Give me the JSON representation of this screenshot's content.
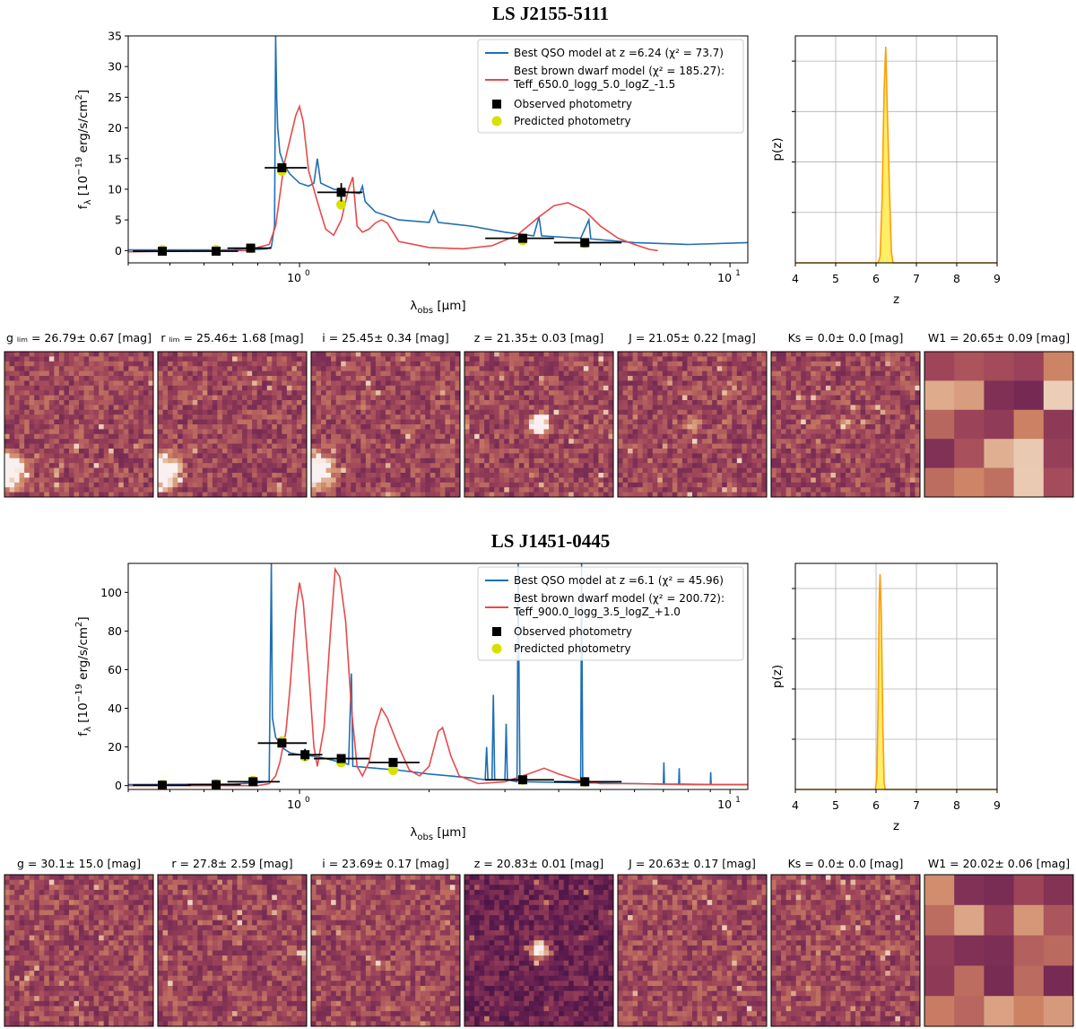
{
  "chart_data": [
    {
      "object": "LS J2155-5111",
      "type": "line",
      "sed": {
        "xlabel_main": "λ",
        "xlabel_sub": "obs",
        "xlabel_unit": "[μm]",
        "ylabel": "f_λ [10^-19 erg/s/cm^2]",
        "x_scale": "log",
        "xlim": [
          0.4,
          11
        ],
        "ylim": [
          -2,
          35
        ],
        "x_ticks": [
          {
            "value": 1,
            "label": "10^0"
          },
          {
            "value": 10,
            "label": "10^1"
          }
        ],
        "y_ticks": [
          0,
          5,
          10,
          15,
          20,
          25,
          30,
          35
        ],
        "legend": {
          "position": "top-right",
          "qso_label": "Best QSO model at z =6.24 (χ² = 73.7)",
          "bd_label_1": "Best brown dwarf model (χ² = 185.27):",
          "bd_label_2": "Teff_650.0_logg_5.0_logZ_-1.5",
          "obs_label": "Observed photometry",
          "pred_label": "Predicted photometry"
        },
        "qso_color": "#1f6fb4",
        "bd_color": "#e64a4a",
        "pred_color": "#d8e000",
        "qso_curve": [
          [
            0.4,
            0.1
          ],
          [
            0.6,
            0.1
          ],
          [
            0.7,
            0.1
          ],
          [
            0.75,
            0.3
          ],
          [
            0.8,
            0.2
          ],
          [
            0.84,
            0.3
          ],
          [
            0.86,
            0.6
          ],
          [
            0.875,
            4
          ],
          [
            0.88,
            35
          ],
          [
            0.885,
            25
          ],
          [
            0.89,
            20
          ],
          [
            0.9,
            16
          ],
          [
            0.92,
            14
          ],
          [
            0.95,
            12.5
          ],
          [
            1.0,
            11
          ],
          [
            1.05,
            10.5
          ],
          [
            1.08,
            11
          ],
          [
            1.1,
            15
          ],
          [
            1.12,
            11
          ],
          [
            1.2,
            10
          ],
          [
            1.3,
            9.5
          ],
          [
            1.38,
            9.3
          ],
          [
            1.4,
            10.5
          ],
          [
            1.42,
            8
          ],
          [
            1.5,
            6.3
          ],
          [
            1.7,
            5
          ],
          [
            2.0,
            4.6
          ],
          [
            2.05,
            6.5
          ],
          [
            2.1,
            4.6
          ],
          [
            2.5,
            4
          ],
          [
            3.0,
            3
          ],
          [
            3.5,
            2.4
          ],
          [
            3.6,
            5.5
          ],
          [
            3.65,
            2.4
          ],
          [
            4.5,
            2
          ],
          [
            4.7,
            5
          ],
          [
            4.75,
            1.9
          ],
          [
            6,
            1.3
          ],
          [
            8,
            1
          ],
          [
            11,
            1.3
          ]
        ],
        "bd_curve": [
          [
            0.4,
            -0.2
          ],
          [
            0.75,
            0
          ],
          [
            0.85,
            1
          ],
          [
            0.88,
            4
          ],
          [
            0.9,
            9
          ],
          [
            0.92,
            14
          ],
          [
            0.95,
            18
          ],
          [
            0.98,
            22
          ],
          [
            1.0,
            23.5
          ],
          [
            1.02,
            21
          ],
          [
            1.05,
            13
          ],
          [
            1.1,
            8
          ],
          [
            1.15,
            3.5
          ],
          [
            1.2,
            2.5
          ],
          [
            1.25,
            5
          ],
          [
            1.3,
            10
          ],
          [
            1.33,
            12
          ],
          [
            1.36,
            4
          ],
          [
            1.4,
            3
          ],
          [
            1.45,
            3.5
          ],
          [
            1.5,
            4.5
          ],
          [
            1.55,
            5
          ],
          [
            1.6,
            4.5
          ],
          [
            1.7,
            1.5
          ],
          [
            2.0,
            0.5
          ],
          [
            2.4,
            0.3
          ],
          [
            2.8,
            0.8
          ],
          [
            3.2,
            2.5
          ],
          [
            3.6,
            5.5
          ],
          [
            3.9,
            7.3
          ],
          [
            4.2,
            7.8
          ],
          [
            4.6,
            6.5
          ],
          [
            5.0,
            4
          ],
          [
            5.5,
            2
          ],
          [
            6.0,
            1
          ],
          [
            6.5,
            0.2
          ],
          [
            6.8,
            0
          ]
        ],
        "observed": [
          {
            "x": 0.48,
            "y": -0.1,
            "xerr": [
              0.41,
              0.56
            ],
            "yerr": 0.2
          },
          {
            "x": 0.64,
            "y": -0.1,
            "xerr": [
              0.56,
              0.72
            ],
            "yerr": 0.2
          },
          {
            "x": 0.77,
            "y": 0.4,
            "xerr": [
              0.68,
              0.86
            ],
            "yerr": 0.5
          },
          {
            "x": 0.91,
            "y": 13.5,
            "xerr": [
              0.83,
              1.04
            ],
            "yerr": 0.5
          },
          {
            "x": 1.25,
            "y": 9.5,
            "xerr": [
              1.1,
              1.4
            ],
            "yerr": 1.5
          },
          {
            "x": 3.3,
            "y": 2,
            "xerr": [
              2.7,
              3.9
            ],
            "yerr": 0.3
          },
          {
            "x": 4.6,
            "y": 1.3,
            "xerr": [
              3.9,
              5.6
            ],
            "yerr": 0.3
          }
        ],
        "predicted": [
          {
            "x": 0.48,
            "y": 0.1
          },
          {
            "x": 0.64,
            "y": 0.1
          },
          {
            "x": 0.77,
            "y": 0.4
          },
          {
            "x": 0.91,
            "y": 13
          },
          {
            "x": 1.25,
            "y": 7.5
          },
          {
            "x": 3.3,
            "y": 1.7
          },
          {
            "x": 4.6,
            "y": 1.2
          }
        ]
      },
      "pz": {
        "ylabel": "p(z)",
        "xlabel": "z",
        "xlim": [
          4,
          9
        ],
        "x_ticks": [
          4,
          5,
          6,
          7,
          8,
          9
        ],
        "line_color": "#ff9d0a",
        "fill_color": "#ffee66",
        "curve": [
          [
            4,
            0
          ],
          [
            6.05,
            0
          ],
          [
            6.1,
            0.03
          ],
          [
            6.15,
            0.3
          ],
          [
            6.2,
            0.8
          ],
          [
            6.24,
            1.0
          ],
          [
            6.28,
            0.7
          ],
          [
            6.33,
            0.35
          ],
          [
            6.38,
            0.05
          ],
          [
            6.42,
            0
          ],
          [
            9,
            0
          ]
        ]
      },
      "cutouts": [
        {
          "label": "g ₗᵢₘ = 26.79± 0.67 [mag]",
          "source": "corner"
        },
        {
          "label": "r ₗᵢₘ = 25.46± 1.68 [mag]",
          "source": "corner"
        },
        {
          "label": "i = 25.45± 0.34 [mag]",
          "source": "corner"
        },
        {
          "label": "z = 21.35± 0.03 [mag]",
          "source": "center"
        },
        {
          "label": "J = 21.05± 0.22 [mag]",
          "source": "center-faint"
        },
        {
          "label": "Ks = 0.0± 0.0 [mag]",
          "source": "center-faint"
        },
        {
          "label": "W1 = 20.65± 0.09 [mag]",
          "source": "wise"
        }
      ]
    },
    {
      "object": "LS J1451-0445",
      "type": "line",
      "sed": {
        "xlabel_main": "λ",
        "xlabel_sub": "obs",
        "xlabel_unit": "[μm]",
        "ylabel": "f_λ [10^-19 erg/s/cm^2]",
        "x_scale": "log",
        "xlim": [
          0.4,
          11
        ],
        "ylim": [
          -2,
          115
        ],
        "x_ticks": [
          {
            "value": 1,
            "label": "10^0"
          },
          {
            "value": 10,
            "label": "10^1"
          }
        ],
        "y_ticks": [
          0,
          20,
          40,
          60,
          80,
          100
        ],
        "legend": {
          "position": "top-right",
          "qso_label": "Best QSO model at z =6.1 (χ² = 45.96)",
          "bd_label_1": "Best brown dwarf model (χ² = 200.72):",
          "bd_label_2": "Teff_900.0_logg_3.5_logZ_+1.0",
          "obs_label": "Observed photometry",
          "pred_label": "Predicted photometry"
        },
        "qso_color": "#1f6fb4",
        "bd_color": "#e64a4a",
        "pred_color": "#d8e000",
        "qso_curve": [
          [
            0.4,
            0.5
          ],
          [
            0.7,
            0.8
          ],
          [
            0.8,
            1.5
          ],
          [
            0.85,
            2
          ],
          [
            0.86,
            115
          ],
          [
            0.865,
            35
          ],
          [
            0.88,
            25
          ],
          [
            0.92,
            19
          ],
          [
            0.95,
            17
          ],
          [
            1.0,
            16
          ],
          [
            1.1,
            15
          ],
          [
            1.2,
            13
          ],
          [
            1.3,
            11
          ],
          [
            1.32,
            58
          ],
          [
            1.33,
            10
          ],
          [
            1.5,
            9
          ],
          [
            1.7,
            8
          ],
          [
            2.0,
            6
          ],
          [
            2.5,
            4
          ],
          [
            2.7,
            3
          ],
          [
            2.72,
            20
          ],
          [
            2.74,
            3
          ],
          [
            2.8,
            3
          ],
          [
            2.82,
            47
          ],
          [
            2.84,
            3
          ],
          [
            3.0,
            3
          ],
          [
            3.02,
            32
          ],
          [
            3.04,
            3
          ],
          [
            3.2,
            2
          ],
          [
            3.22,
            115
          ],
          [
            3.25,
            2
          ],
          [
            4.5,
            1.5
          ],
          [
            4.52,
            115
          ],
          [
            4.55,
            1.5
          ],
          [
            6.0,
            1
          ],
          [
            7.0,
            0.8
          ],
          [
            7.02,
            12
          ],
          [
            7.04,
            0.8
          ],
          [
            7.6,
            0.8
          ],
          [
            7.62,
            9
          ],
          [
            7.64,
            0.8
          ],
          [
            9,
            0.5
          ],
          [
            9.02,
            7
          ],
          [
            9.04,
            0.5
          ],
          [
            11,
            0.5
          ]
        ],
        "bd_curve": [
          [
            0.4,
            0
          ],
          [
            0.8,
            0
          ],
          [
            0.85,
            1
          ],
          [
            0.88,
            5
          ],
          [
            0.9,
            12
          ],
          [
            0.93,
            28
          ],
          [
            0.95,
            50
          ],
          [
            0.98,
            90
          ],
          [
            1.0,
            105
          ],
          [
            1.02,
            95
          ],
          [
            1.05,
            60
          ],
          [
            1.08,
            20
          ],
          [
            1.1,
            10
          ],
          [
            1.14,
            30
          ],
          [
            1.18,
            80
          ],
          [
            1.21,
            112
          ],
          [
            1.24,
            108
          ],
          [
            1.28,
            85
          ],
          [
            1.32,
            40
          ],
          [
            1.36,
            10
          ],
          [
            1.4,
            5
          ],
          [
            1.45,
            12
          ],
          [
            1.5,
            30
          ],
          [
            1.55,
            40
          ],
          [
            1.6,
            35
          ],
          [
            1.7,
            20
          ],
          [
            1.8,
            8
          ],
          [
            1.9,
            5
          ],
          [
            2.0,
            10
          ],
          [
            2.1,
            28
          ],
          [
            2.15,
            30
          ],
          [
            2.25,
            15
          ],
          [
            2.35,
            5
          ],
          [
            2.6,
            1
          ],
          [
            3.0,
            2
          ],
          [
            3.4,
            6
          ],
          [
            3.7,
            9
          ],
          [
            4.0,
            6
          ],
          [
            4.5,
            2.5
          ],
          [
            5.0,
            1
          ],
          [
            6,
            1
          ],
          [
            8,
            0.5
          ],
          [
            11,
            0.5
          ]
        ],
        "observed": [
          {
            "x": 0.48,
            "y": 0.2,
            "xerr": [
              0.41,
              0.56
            ],
            "yerr": 0.5
          },
          {
            "x": 0.64,
            "y": 0.5,
            "xerr": [
              0.55,
              0.73
            ],
            "yerr": 0.5
          },
          {
            "x": 0.78,
            "y": 2,
            "xerr": [
              0.68,
              0.9
            ],
            "yerr": 1
          },
          {
            "x": 0.91,
            "y": 22,
            "xerr": [
              0.8,
              1.04
            ],
            "yerr": 2
          },
          {
            "x": 1.03,
            "y": 16,
            "xerr": [
              0.94,
              1.13
            ],
            "yerr": 3
          },
          {
            "x": 1.25,
            "y": 14,
            "xerr": [
              1.08,
              1.45
            ],
            "yerr": 2
          },
          {
            "x": 1.65,
            "y": 12,
            "xerr": [
              1.45,
              1.9
            ],
            "yerr": 2
          },
          {
            "x": 3.3,
            "y": 3,
            "xerr": [
              2.7,
              3.9
            ],
            "yerr": 0.5
          },
          {
            "x": 4.6,
            "y": 2,
            "xerr": [
              3.9,
              5.6
            ],
            "yerr": 0.5
          }
        ],
        "predicted": [
          {
            "x": 0.48,
            "y": 0.5
          },
          {
            "x": 0.64,
            "y": 0.8
          },
          {
            "x": 0.78,
            "y": 2.5
          },
          {
            "x": 0.91,
            "y": 23
          },
          {
            "x": 1.03,
            "y": 15
          },
          {
            "x": 1.25,
            "y": 12
          },
          {
            "x": 1.65,
            "y": 8
          },
          {
            "x": 3.3,
            "y": 3
          },
          {
            "x": 4.6,
            "y": 2
          }
        ]
      },
      "pz": {
        "ylabel": "p(z)",
        "xlabel": "z",
        "xlim": [
          4,
          9
        ],
        "x_ticks": [
          4,
          5,
          6,
          7,
          8,
          9
        ],
        "line_color": "#ff9d0a",
        "fill_color": "#ffee66",
        "curve": [
          [
            4,
            0
          ],
          [
            5.98,
            0
          ],
          [
            6.02,
            0.05
          ],
          [
            6.05,
            0.4
          ],
          [
            6.08,
            0.9
          ],
          [
            6.1,
            1.0
          ],
          [
            6.13,
            0.8
          ],
          [
            6.17,
            0.3
          ],
          [
            6.2,
            0.03
          ],
          [
            6.23,
            0
          ],
          [
            9,
            0
          ]
        ]
      },
      "cutouts": [
        {
          "label": "g = 30.1± 15.0 [mag]",
          "source": "none"
        },
        {
          "label": "r = 27.8± 2.59 [mag]",
          "source": "none"
        },
        {
          "label": "i = 23.69± 0.17 [mag]",
          "source": "faint"
        },
        {
          "label": "z = 20.83± 0.01 [mag]",
          "source": "center-dark"
        },
        {
          "label": "J = 20.63± 0.17 [mag]",
          "source": "none"
        },
        {
          "label": "Ks = 0.0± 0.0 [mag]",
          "source": "none"
        },
        {
          "label": "W1 = 20.02± 0.06 [mag]",
          "source": "wise"
        }
      ]
    }
  ]
}
